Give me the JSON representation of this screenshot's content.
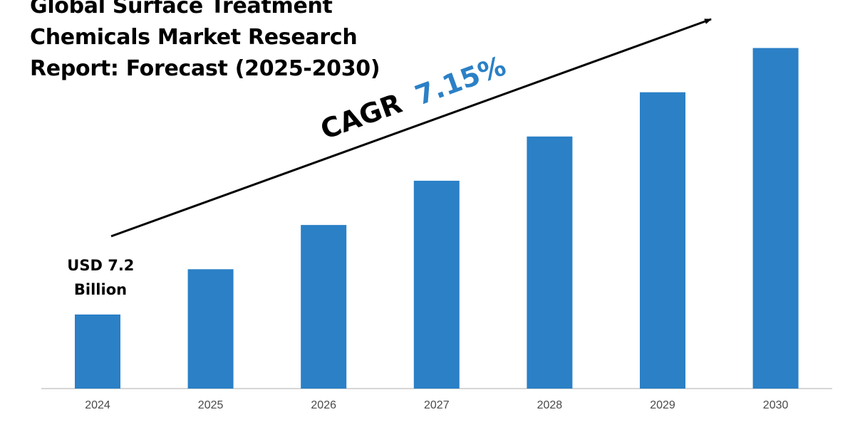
{
  "title_lines": [
    "Global Surface Treatment",
    "Chemicals Market Research",
    "Report: Forecast (2025-2030)"
  ],
  "cagr": {
    "prefix": "CAGR",
    "value": "7.15%"
  },
  "start_value_label": {
    "line1": "USD 7.2",
    "line2": "Billion"
  },
  "colors": {
    "bar": "#2b80c6",
    "cagr_value": "#2b80c6",
    "text": "#000000",
    "axis": "#c8c8c8"
  },
  "chart_data": {
    "type": "bar",
    "title": "Global Surface Treatment Chemicals Market Research Report: Forecast (2025-2030)",
    "categories": [
      "2024",
      "2025",
      "2026",
      "2027",
      "2028",
      "2029",
      "2030"
    ],
    "values": [
      7.2,
      11.6,
      15.9,
      20.2,
      24.5,
      28.8,
      33.1
    ],
    "ylim": [
      0,
      35
    ],
    "xlabel": "",
    "ylabel": "",
    "annotations": [
      "USD 7.2 Billion",
      "CAGR 7.15%"
    ]
  }
}
